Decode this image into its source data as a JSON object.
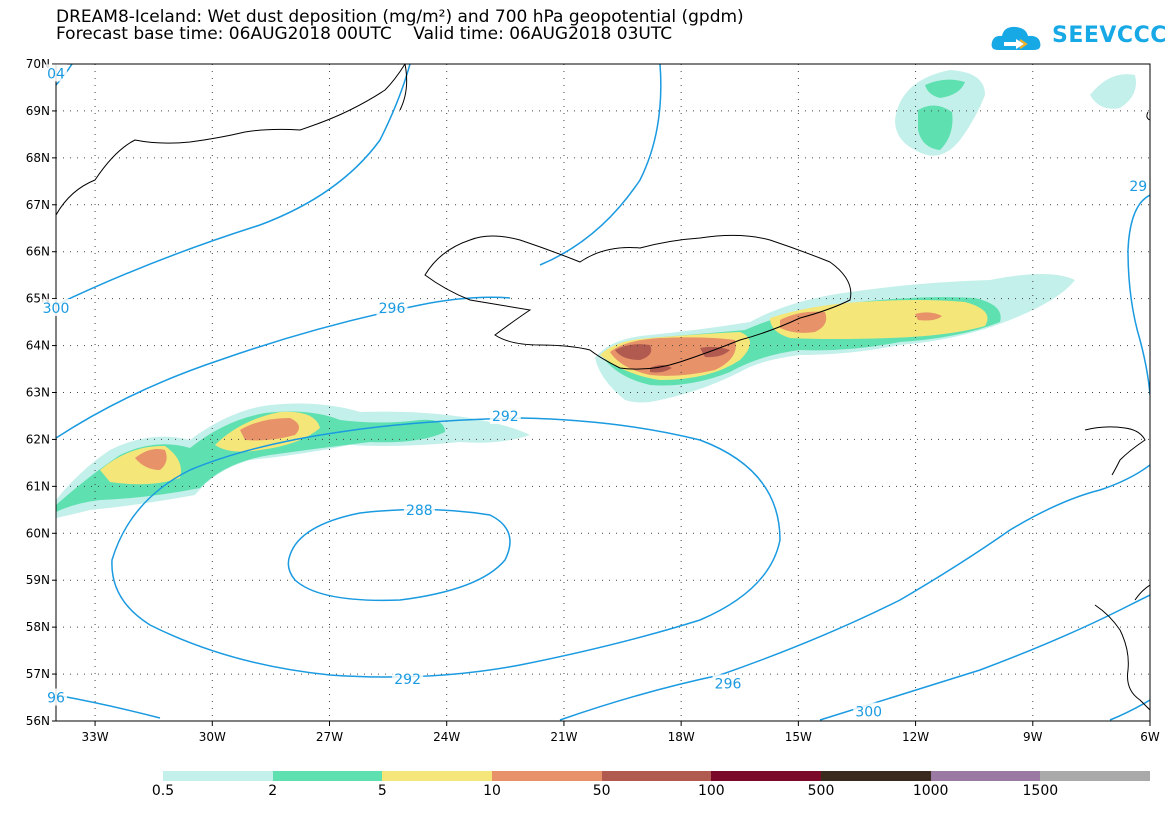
{
  "header": {
    "title_line1": "DREAM8-Iceland: Wet dust deposition (mg/m²) and 700 hPa geopotential (gpdm)",
    "title_line2": "Forecast base time: 06AUG2018 00UTC    Valid time: 06AUG2018 03UTC",
    "logo_text": "SEEVCCC",
    "logo_color": "#17a8e6"
  },
  "map": {
    "lat_labels": [
      "70N",
      "69N",
      "68N",
      "67N",
      "66N",
      "65N",
      "64N",
      "63N",
      "62N",
      "61N",
      "60N",
      "59N",
      "58N",
      "57N",
      "56N"
    ],
    "lon_labels": [
      "33W",
      "30W",
      "27W",
      "24W",
      "21W",
      "18W",
      "15W",
      "12W",
      "9W",
      "6W"
    ],
    "contour_color": "#1a9ae0",
    "contour_labels": [
      {
        "text": "296",
        "lon": -25.4,
        "lat": 64.8
      },
      {
        "text": "292",
        "lon": -22.5,
        "lat": 62.5
      },
      {
        "text": "288",
        "lon": -24.7,
        "lat": 60.5
      },
      {
        "text": "292",
        "lon": -25.0,
        "lat": 56.9
      },
      {
        "text": "296",
        "lon": -16.8,
        "lat": 56.8
      },
      {
        "text": "300",
        "lon": -13.2,
        "lat": 56.2
      },
      {
        "text": "300",
        "lon": -34.0,
        "lat": 64.8
      },
      {
        "text": "96",
        "lon": -34.0,
        "lat": 56.5
      },
      {
        "text": "04",
        "lon": -34.0,
        "lat": 69.8
      },
      {
        "text": "29",
        "lon": -6.3,
        "lat": 67.4
      }
    ]
  },
  "legend": {
    "labels": [
      "0.5",
      "2",
      "5",
      "10",
      "50",
      "100",
      "500",
      "1000",
      "1500"
    ],
    "colors": [
      "#c3f0ea",
      "#5fe0b0",
      "#f5e67a",
      "#e8926a",
      "#b05a50",
      "#7b0a2a",
      "#3a2a1e",
      "#9a7aa2",
      "#a9a9a9"
    ]
  }
}
